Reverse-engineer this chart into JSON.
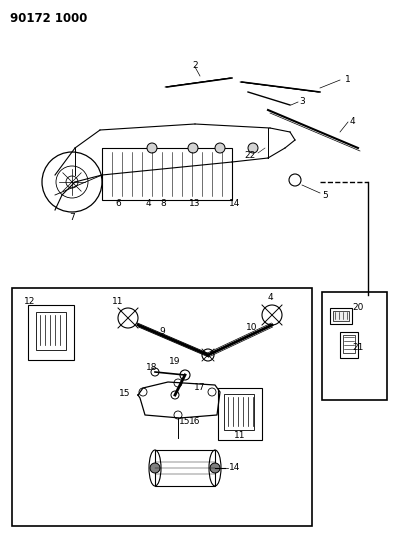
{
  "title": "90172 1000",
  "bg_color": "#ffffff",
  "line_color": "#000000",
  "fig_width": 3.94,
  "fig_height": 5.33,
  "dpi": 100,
  "title_fontsize": 8,
  "label_fontsize": 6.5
}
